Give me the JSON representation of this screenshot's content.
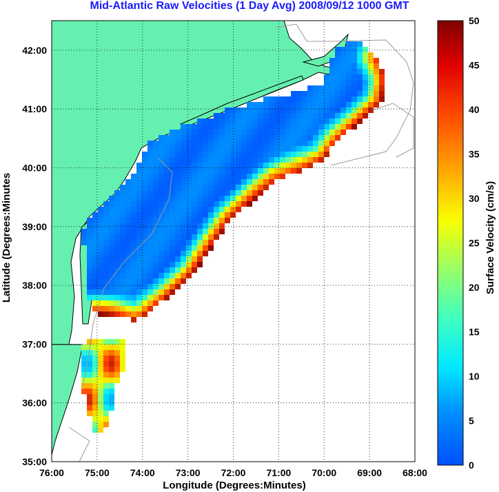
{
  "title": "Mid-Atlantic Raw Velocities (1 Day Avg) 2008/09/12 1000 GMT",
  "axes": {
    "xlabel": "Longitude (Degrees:Minutes)",
    "ylabel": "Latitude (Degrees:Minutes",
    "x_ticks": [
      "76:00",
      "75:00",
      "74:00",
      "73:00",
      "72:00",
      "71:00",
      "70:00",
      "69:00",
      "68:00"
    ],
    "y_ticks": [
      "42:00",
      "41:00",
      "40:00",
      "39:00",
      "38:00",
      "37:00",
      "36:00",
      "35:00"
    ],
    "x_range_deg": [
      -76,
      -68
    ],
    "y_range_deg": [
      35,
      42.5
    ]
  },
  "colorbar": {
    "label": "Surface Velocity (cm/s)",
    "ticks": [
      "50",
      "45",
      "40",
      "35",
      "30",
      "25",
      "20",
      "15",
      "10",
      "5",
      "0"
    ],
    "range": [
      0,
      50
    ]
  },
  "colors": {
    "land": "#66f0b0",
    "coast": "#000000",
    "bathymetry": "#999999",
    "grid": "#000000"
  }
}
